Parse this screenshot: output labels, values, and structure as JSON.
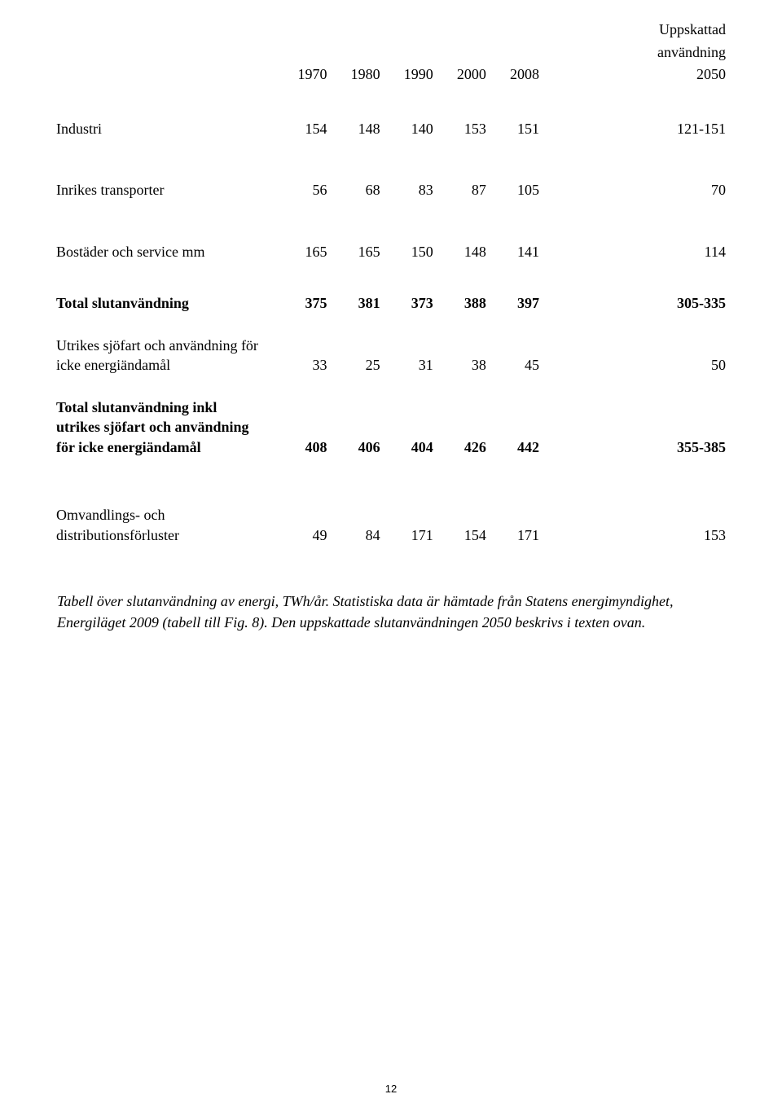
{
  "header": {
    "est_line1": "Uppskattad",
    "est_line2": "användning",
    "est_year": "2050",
    "years": [
      "1970",
      "1980",
      "1990",
      "2000",
      "2008"
    ]
  },
  "rows": {
    "industri": {
      "label": "Industri",
      "vals": [
        "154",
        "148",
        "140",
        "153",
        "151"
      ],
      "last": "121-151"
    },
    "inrikes": {
      "label": "Inrikes transporter",
      "vals": [
        "56",
        "68",
        "83",
        "87",
        "105"
      ],
      "last": "70"
    },
    "bostader": {
      "label": "Bostäder och service mm",
      "vals": [
        "165",
        "165",
        "150",
        "148",
        "141"
      ],
      "last": "114"
    },
    "total_slut": {
      "label": "Total slutanvändning",
      "vals": [
        "375",
        "381",
        "373",
        "388",
        "397"
      ],
      "last": "305-335"
    },
    "utrikes": {
      "label1": "Utrikes sjöfart och användning för",
      "label2": "icke energiändamål",
      "vals": [
        "33",
        "25",
        "31",
        "38",
        "45"
      ],
      "last": "50"
    },
    "total_inkl": {
      "label1": "Total slutanvändning inkl",
      "label2": "utrikes sjöfart och användning",
      "label3": "för icke energiändamål",
      "vals": [
        "408",
        "406",
        "404",
        "426",
        "442"
      ],
      "last": "355-385"
    },
    "omvandling": {
      "label1": "Omvandlings- och",
      "label2": "distributionsförluster",
      "vals": [
        "49",
        "84",
        "171",
        "154",
        "171"
      ],
      "last": "153"
    }
  },
  "caption": "Tabell över slutanvändning av energi, TWh/år. Statistiska data är hämtade från Statens energimyndighet, Energiläget 2009 (tabell till Fig. 8). Den uppskattade slutanvändningen 2050 beskrivs i texten ovan.",
  "pagenum": "12"
}
